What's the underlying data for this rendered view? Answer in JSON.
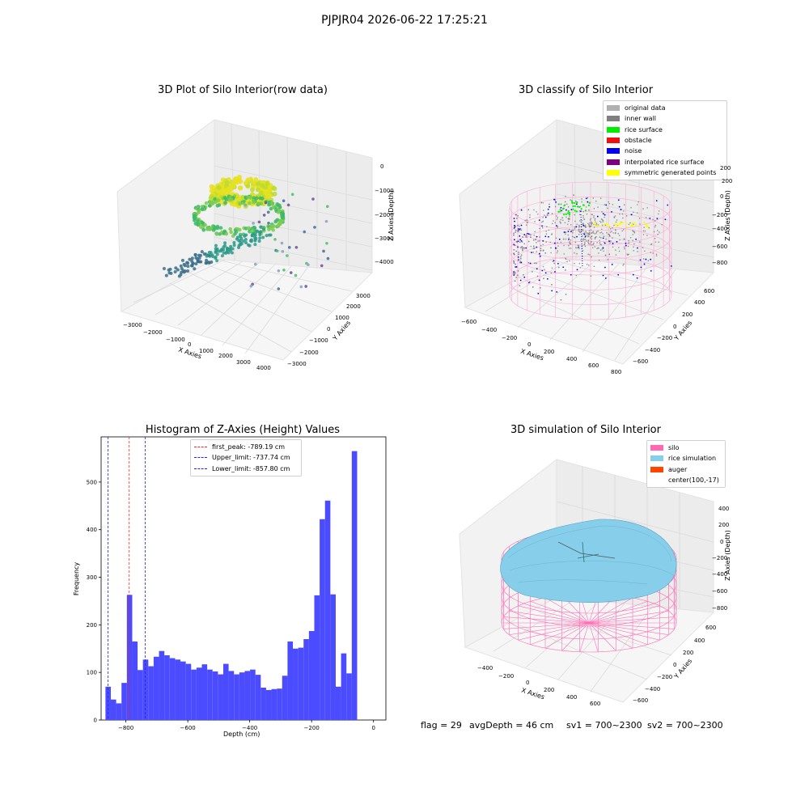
{
  "figure": {
    "suptitle": "PJPJR04 2026-06-22 17:25:21"
  },
  "footer": {
    "flag": "flag = 29",
    "avg_depth": "avgDepth = 46 cm",
    "sv1": "sv1 = 700~2300",
    "sv2": "sv2 = 700~2300"
  },
  "chart_data": [
    {
      "type": "scatter",
      "title": "3D Plot of Silo Interior(row data)",
      "projection": "3d",
      "xlabel": "X Axies",
      "ylabel": "Y Axies",
      "zlabel": "Z Axies (Depth)",
      "xticks": [
        "−3000",
        "−2000",
        "−1000",
        "0",
        "1000",
        "2000",
        "3000",
        "4000"
      ],
      "yticks": [
        "3000",
        "2000",
        "1000",
        "0",
        "−1000",
        "−2000",
        "−3000"
      ],
      "zticks": [
        "0",
        "−1000",
        "−2000",
        "−3000",
        "−4000"
      ],
      "colormap": "viridis (depth)",
      "grid": true
    },
    {
      "type": "scatter",
      "title": "3D classify of Silo Interior",
      "projection": "3d",
      "xlabel": "X Axies",
      "ylabel": "Y Axies",
      "zlabel": "Z Axies (Depth)",
      "xticks": [
        "−600",
        "−400",
        "−200",
        "0",
        "200",
        "400",
        "600",
        "800"
      ],
      "yticks": [
        "600",
        "400",
        "200",
        "0",
        "−200",
        "−400",
        "−600"
      ],
      "zticks": [
        "200",
        "0",
        "−200",
        "−400",
        "−600",
        "−800"
      ],
      "legend_position": "top-right",
      "legend": [
        {
          "label": "original data",
          "color": "#b0b0b0"
        },
        {
          "label": "inner wall",
          "color": "#808080"
        },
        {
          "label": "rice surface",
          "color": "#00ee00"
        },
        {
          "label": "obstacle",
          "color": "#ee1111"
        },
        {
          "label": "noise",
          "color": "#0000ee"
        },
        {
          "label": "interpolated rice surface",
          "color": "#800080"
        },
        {
          "label": "symmetric generated points",
          "color": "#ffff00"
        }
      ],
      "grid": true
    },
    {
      "type": "bar",
      "title": "Histogram of Z-Axies (Height) Values",
      "xlabel": "Depth (cm)",
      "ylabel": "Frequency",
      "xlim": [
        -880,
        40
      ],
      "ylim": [
        0,
        595
      ],
      "xticks": [
        -800,
        -600,
        -400,
        -200,
        0
      ],
      "xtick_labels": [
        "−800",
        "−600",
        "−400",
        "−200",
        "0"
      ],
      "yticks": [
        0,
        100,
        200,
        300,
        400,
        500
      ],
      "bin_start": -866,
      "bin_width": 17.3,
      "values": [
        70,
        43,
        35,
        78,
        263,
        165,
        105,
        127,
        113,
        133,
        145,
        136,
        130,
        127,
        123,
        118,
        106,
        110,
        117,
        106,
        102,
        96,
        118,
        103,
        96,
        100,
        103,
        106,
        95,
        68,
        63,
        65,
        66,
        93,
        165,
        150,
        152,
        170,
        187,
        262,
        422,
        461,
        264,
        70,
        140,
        98,
        565
      ],
      "bar_color": "#4b4bff",
      "legend_position": "top-center",
      "lines": [
        {
          "label": "first_peak: -789.19 cm",
          "x": -789.19,
          "color": "#ff2020"
        },
        {
          "label": "Upper_limit: -737.74 cm",
          "x": -737.74,
          "color": "#2020ff"
        },
        {
          "label": "Lower_limit: -857.80 cm",
          "x": -857.8,
          "color": "#2020ff"
        }
      ],
      "grid": false
    },
    {
      "type": "area",
      "title": "3D simulation of Silo Interior",
      "projection": "3d",
      "xlabel": "X Axies",
      "ylabel": "Y Axies",
      "zlabel": "Z Axies (Depth)",
      "xticks": [
        "−400",
        "−200",
        "0",
        "200",
        "400",
        "600"
      ],
      "yticks": [
        "600",
        "400",
        "200",
        "0",
        "−200",
        "−400",
        "−600"
      ],
      "zticks": [
        "400",
        "200",
        "0",
        "−200",
        "−400",
        "−600",
        "−800"
      ],
      "legend_position": "top-right",
      "legend": [
        {
          "label": "silo",
          "color": "#ff69b4"
        },
        {
          "label": "rice simulation",
          "color": "#87ceeb"
        },
        {
          "label": "auger",
          "color": "#ff4500"
        },
        {
          "label": "center(100,-17)",
          "color": ""
        }
      ],
      "grid": true
    }
  ]
}
